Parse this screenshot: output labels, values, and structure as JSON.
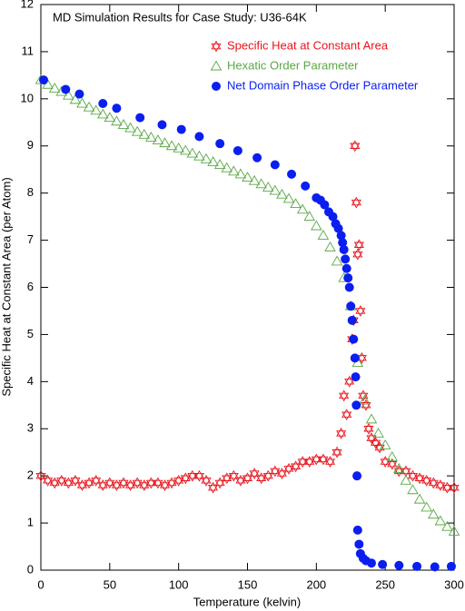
{
  "chart_data": {
    "type": "scatter",
    "title": "MD Simulation Results for Case Study: U36-64K",
    "x_label": "Temperature (kelvin)",
    "y_label": "Specific Heat at Constant Area (per Atom)",
    "xlim": [
      0,
      300
    ],
    "xticks": [
      0,
      50,
      100,
      150,
      200,
      250,
      300
    ],
    "ylim": [
      0,
      12
    ],
    "yticks": [
      0,
      1,
      2,
      3,
      4,
      5,
      6,
      7,
      8,
      9,
      10,
      11,
      12
    ],
    "legend": "upper right",
    "series": [
      {
        "name": "Specific Heat at Constant Area",
        "color": "#e8141c",
        "marker": "hexagram",
        "x": [
          0,
          5,
          10,
          15,
          20,
          25,
          30,
          35,
          40,
          45,
          50,
          55,
          60,
          65,
          70,
          75,
          80,
          85,
          90,
          95,
          100,
          105,
          110,
          115,
          120,
          125,
          130,
          135,
          140,
          145,
          150,
          155,
          160,
          165,
          170,
          175,
          180,
          185,
          190,
          195,
          200,
          205,
          210,
          215,
          218,
          220,
          222,
          224,
          226,
          227,
          228,
          229,
          230,
          231,
          232,
          233,
          234,
          236,
          238,
          240,
          243,
          246,
          250,
          255,
          260,
          265,
          270,
          275,
          280,
          285,
          290,
          295,
          300
        ],
        "values": [
          2.0,
          1.9,
          1.85,
          1.9,
          1.85,
          1.9,
          1.8,
          1.85,
          1.9,
          1.8,
          1.85,
          1.8,
          1.85,
          1.8,
          1.85,
          1.8,
          1.85,
          1.85,
          1.8,
          1.85,
          1.9,
          1.95,
          2.0,
          2.0,
          1.9,
          1.75,
          1.85,
          1.95,
          2.0,
          1.9,
          1.95,
          2.05,
          1.95,
          2.0,
          2.1,
          2.05,
          2.15,
          2.2,
          2.3,
          2.3,
          2.35,
          2.35,
          2.3,
          2.5,
          2.9,
          3.7,
          3.3,
          4.0,
          4.9,
          5.3,
          9.0,
          7.8,
          6.7,
          6.9,
          5.5,
          4.5,
          3.7,
          3.5,
          3.0,
          2.8,
          2.7,
          2.6,
          2.3,
          2.25,
          2.1,
          2.1,
          2.0,
          1.95,
          1.9,
          1.85,
          1.8,
          1.75,
          1.75
        ]
      },
      {
        "name": "Hexatic Order Parameter",
        "color": "#5aa845",
        "marker": "triangle",
        "x": [
          0,
          5,
          10,
          15,
          20,
          25,
          30,
          35,
          40,
          45,
          50,
          55,
          60,
          65,
          70,
          75,
          80,
          85,
          90,
          95,
          100,
          105,
          110,
          115,
          120,
          125,
          130,
          135,
          140,
          145,
          150,
          155,
          160,
          165,
          170,
          175,
          180,
          185,
          190,
          195,
          200,
          205,
          210,
          215,
          220,
          225,
          230,
          235,
          240,
          245,
          250,
          255,
          260,
          265,
          270,
          275,
          280,
          285,
          290,
          295,
          300
        ],
        "values": [
          10.4,
          10.3,
          10.22,
          10.15,
          10.07,
          9.98,
          9.9,
          9.82,
          9.75,
          9.67,
          9.6,
          9.52,
          9.45,
          9.38,
          9.3,
          9.24,
          9.18,
          9.12,
          9.06,
          9.0,
          8.95,
          8.9,
          8.84,
          8.78,
          8.72,
          8.66,
          8.6,
          8.53,
          8.46,
          8.4,
          8.33,
          8.26,
          8.19,
          8.12,
          8.05,
          7.97,
          7.88,
          7.77,
          7.65,
          7.5,
          7.3,
          7.1,
          6.85,
          6.55,
          6.2,
          5.6,
          4.4,
          3.6,
          3.2,
          2.9,
          2.65,
          2.4,
          2.15,
          1.9,
          1.7,
          1.5,
          1.33,
          1.18,
          1.04,
          0.92,
          0.82
        ]
      },
      {
        "name": "Net Domain Phase Order Parameter",
        "color": "#0a1ef0",
        "marker": "circle",
        "x": [
          2,
          18,
          28,
          45,
          55,
          72,
          88,
          102,
          115,
          130,
          143,
          157,
          170,
          182,
          192,
          200,
          203,
          206,
          209,
          212,
          214,
          216,
          218,
          219,
          220,
          221,
          222,
          223,
          224,
          225,
          226,
          227,
          228,
          228.5,
          229,
          229.5,
          230,
          231,
          232,
          234,
          236,
          240,
          248,
          260,
          273,
          286,
          298
        ],
        "values": [
          10.4,
          10.2,
          10.1,
          9.9,
          9.8,
          9.6,
          9.45,
          9.35,
          9.2,
          9.05,
          8.9,
          8.75,
          8.6,
          8.4,
          8.15,
          7.9,
          7.85,
          7.75,
          7.6,
          7.5,
          7.35,
          7.25,
          7.1,
          6.95,
          6.8,
          6.6,
          6.4,
          6.2,
          6.0,
          5.6,
          5.3,
          4.9,
          4.5,
          4.1,
          3.5,
          2.0,
          0.85,
          0.55,
          0.35,
          0.25,
          0.2,
          0.15,
          0.12,
          0.1,
          0.08,
          0.07,
          0.08
        ]
      }
    ]
  }
}
